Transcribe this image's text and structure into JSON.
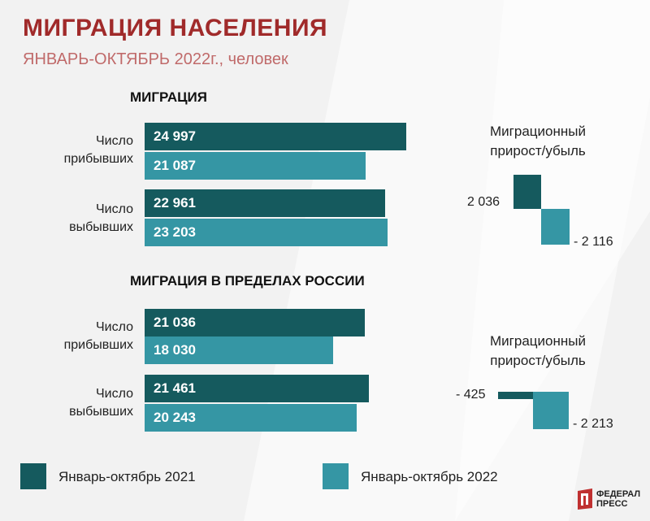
{
  "title": "МИГРАЦИЯ НАСЕЛЕНИЯ",
  "subtitle": "ЯНВАРЬ-ОКТЯБРЬ 2022г., человек",
  "colors": {
    "y2021": "#155a5e",
    "y2022": "#3596a4",
    "title": "#a02a2a",
    "subtitle": "#c06a6a"
  },
  "legend": {
    "y2021": "Январь-октябрь 2021",
    "y2022": "Январь-октябрь 2022"
  },
  "logo": {
    "line1": "ФЕДЕРАЛ",
    "line2": "ПРЕСС"
  },
  "chart_data": [
    {
      "type": "bar",
      "title": "МИГРАЦИЯ",
      "categories": [
        [
          "Число",
          "прибывших"
        ],
        [
          "Число",
          "выбывших"
        ]
      ],
      "series": [
        {
          "name": "Январь-октябрь 2021",
          "values": [
            24997,
            22961
          ],
          "labels": [
            "24 997",
            "22 961"
          ]
        },
        {
          "name": "Январь-октябрь 2022",
          "values": [
            21087,
            23203
          ],
          "labels": [
            "21 087",
            "23 203"
          ]
        }
      ],
      "growth": {
        "title": [
          "Миграционный",
          "прирост/убыль"
        ],
        "values": [
          2036,
          -2116
        ],
        "labels": [
          "2 036",
          "- 2 116"
        ]
      }
    },
    {
      "type": "bar",
      "title": "МИГРАЦИЯ В ПРЕДЕЛАХ РОССИИ",
      "categories": [
        [
          "Число",
          "прибывших"
        ],
        [
          "Число",
          "выбывших"
        ]
      ],
      "series": [
        {
          "name": "Январь-октябрь 2021",
          "values": [
            21036,
            21461
          ],
          "labels": [
            "21 036",
            "21 461"
          ]
        },
        {
          "name": "Январь-октябрь 2022",
          "values": [
            18030,
            20243
          ],
          "labels": [
            "18 030",
            "20 243"
          ]
        }
      ],
      "growth": {
        "title": [
          "Миграционный",
          "прирост/убыль"
        ],
        "values": [
          -425,
          -2213
        ],
        "labels": [
          "- 425",
          "- 2 213"
        ]
      }
    }
  ]
}
